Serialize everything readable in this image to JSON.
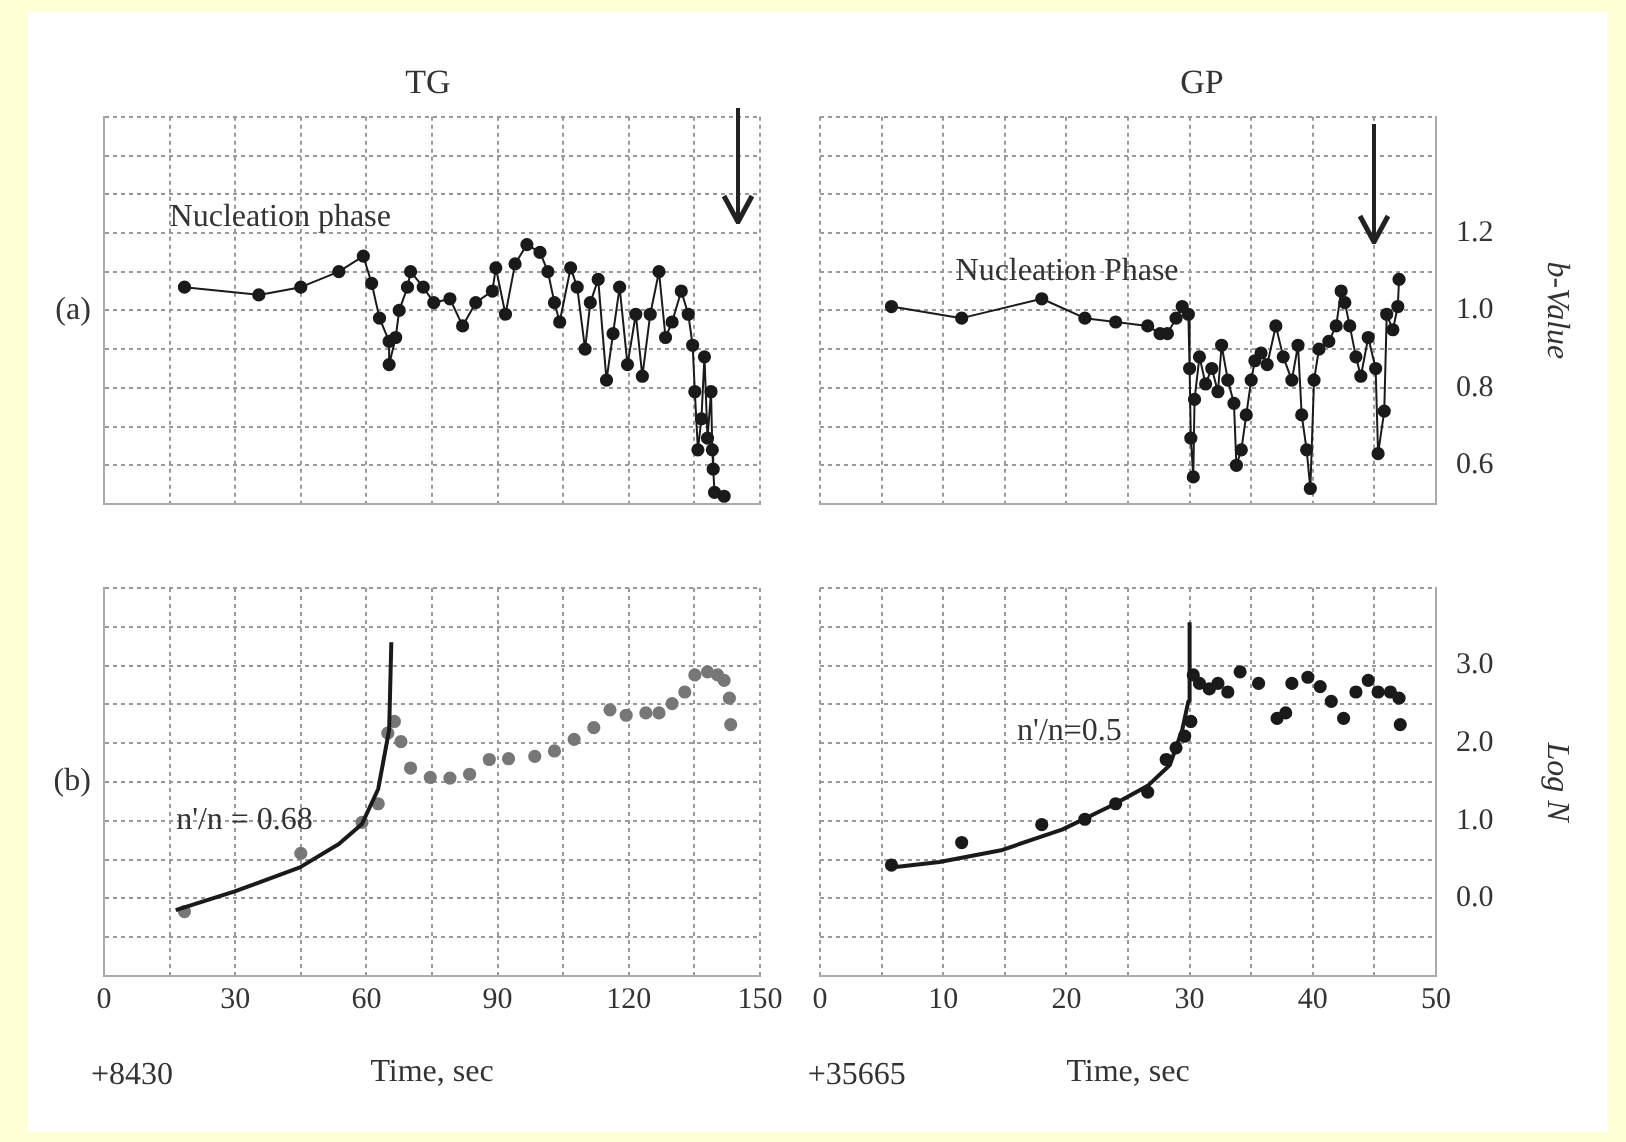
{
  "chart_data": [
    {
      "type": "line",
      "title": "TG",
      "xlim": [
        0,
        150
      ],
      "xticks": [
        0,
        {
          "value": 15,
          "label": null
        },
        30,
        {
          "value": 45,
          "label": null
        },
        60,
        {
          "value": 75,
          "label": null
        },
        90,
        {
          "value": 105,
          "label": null
        },
        120,
        {
          "value": 135,
          "label": null
        },
        150
      ],
      "ylim": [
        0.5,
        1.5
      ],
      "yticks": [
        {
          "value": 0.5,
          "label": null
        },
        0.6,
        {
          "value": 0.7,
          "label": null
        },
        0.8,
        {
          "value": 0.9,
          "label": null
        },
        1,
        {
          "value": 1.1,
          "label": null
        },
        1.2,
        {
          "value": 1.3,
          "label": null
        },
        {
          "value": 1.4,
          "label": null
        },
        {
          "value": 1.5,
          "label": null
        }
      ],
      "grid": true,
      "legend": false,
      "tick_labels": false,
      "annotations": [
        "(a)",
        "Nucleation phase"
      ],
      "series": [
        {
          "type": "line",
          "marker": "circle",
          "color": "#1a1a1a",
          "x": [
            18.4,
            35.4,
            45,
            53.7,
            59.3,
            61.2,
            63,
            65.2,
            65.2,
            66.7,
            67.5,
            69.4,
            70.1,
            73,
            75.4,
            79.1,
            82,
            85,
            88.8,
            89.6,
            91.8,
            94,
            96.7,
            99.7,
            101.5,
            103,
            104.2,
            106.7,
            108.2,
            110,
            111.2,
            113,
            114.9,
            116.4,
            117.9,
            119.7,
            121.6,
            123.1,
            124.9,
            126.9,
            128.4,
            129.9,
            132,
            133.6,
            134.6,
            135.1,
            135.8,
            136.6,
            137.3,
            138,
            138.8,
            139.1,
            139.3,
            139.6,
            141.8
          ],
          "values": [
            1.06,
            1.04,
            1.06,
            1.1,
            1.14,
            1.07,
            0.98,
            0.92,
            0.86,
            0.93,
            1.0,
            1.06,
            1.1,
            1.06,
            1.02,
            1.03,
            0.96,
            1.02,
            1.05,
            1.11,
            0.99,
            1.12,
            1.17,
            1.15,
            1.1,
            1.02,
            0.97,
            1.11,
            1.06,
            0.9,
            1.02,
            1.08,
            0.82,
            0.94,
            1.06,
            0.86,
            0.99,
            0.83,
            0.99,
            1.1,
            0.93,
            0.97,
            1.05,
            0.99,
            0.91,
            0.79,
            0.64,
            0.72,
            0.88,
            0.67,
            0.79,
            0.64,
            0.59,
            0.53,
            0.52
          ]
        }
      ]
    },
    {
      "type": "line",
      "title": "GP",
      "ylabel": "b-Value",
      "xlim": [
        0,
        50
      ],
      "xticks": [
        0,
        {
          "value": 5,
          "label": null
        },
        10,
        {
          "value": 15,
          "label": null
        },
        20,
        {
          "value": 25,
          "label": null
        },
        30,
        {
          "value": 35,
          "label": null
        },
        40,
        {
          "value": 45,
          "label": null
        },
        50
      ],
      "ylim": [
        0.5,
        1.5
      ],
      "yticks": [
        {
          "value": 0.5,
          "label": null
        },
        0.6,
        {
          "value": 0.7,
          "label": null
        },
        0.8,
        {
          "value": 0.9,
          "label": null
        },
        {
          "value": 1,
          "label": "1.0"
        },
        {
          "value": 1.1,
          "label": null
        },
        1.2,
        {
          "value": 1.3,
          "label": null
        },
        {
          "value": 1.4,
          "label": null
        },
        {
          "value": 1.5,
          "label": null
        }
      ],
      "grid": true,
      "legend": false,
      "tick_labels": "y",
      "annotations": [
        "Nucleation Phase"
      ],
      "series": [
        {
          "type": "line",
          "marker": "circle",
          "color": "#1a1a1a",
          "x": [
            5.8,
            11.5,
            18,
            21.5,
            24,
            26.6,
            27.6,
            28.2,
            28.9,
            29.4,
            29.9,
            30,
            30.1,
            30.3,
            30.4,
            30.8,
            31.3,
            31.8,
            32.3,
            32.6,
            33.1,
            33.6,
            33.8,
            34.2,
            34.6,
            35,
            35.3,
            35.8,
            36.3,
            37,
            37.6,
            38.3,
            38.8,
            39.1,
            39.5,
            39.8,
            40.1,
            40.5,
            41.3,
            41.9,
            42.3,
            42.6,
            43,
            43.5,
            43.9,
            44.5,
            45.1,
            45.3,
            45.8,
            46,
            46.5,
            46.9,
            47
          ],
          "values": [
            1.01,
            0.98,
            1.03,
            0.98,
            0.97,
            0.96,
            0.94,
            0.94,
            0.98,
            1.01,
            0.99,
            0.85,
            0.67,
            0.57,
            0.77,
            0.88,
            0.81,
            0.85,
            0.79,
            0.91,
            0.82,
            0.76,
            0.6,
            0.64,
            0.73,
            0.82,
            0.87,
            0.89,
            0.86,
            0.96,
            0.88,
            0.82,
            0.91,
            0.73,
            0.64,
            0.54,
            0.82,
            0.9,
            0.92,
            0.96,
            1.05,
            1.02,
            0.96,
            0.88,
            0.83,
            0.93,
            0.85,
            0.63,
            0.74,
            0.99,
            0.95,
            1.01,
            1.08
          ]
        }
      ]
    },
    {
      "type": "line",
      "xlabel": "Time, sec",
      "xlim": [
        0,
        150
      ],
      "xticks": [
        0,
        {
          "value": 15,
          "label": null
        },
        30,
        {
          "value": 45,
          "label": null
        },
        60,
        {
          "value": 75,
          "label": null
        },
        90,
        {
          "value": 105,
          "label": null
        },
        120,
        {
          "value": 135,
          "label": null
        },
        150
      ],
      "ylim": [
        -1,
        4
      ],
      "yticks": [
        {
          "value": -1,
          "label": null
        },
        {
          "value": -0.5,
          "label": null
        },
        0,
        {
          "value": 0.5,
          "label": null
        },
        1,
        {
          "value": 1.5,
          "label": null
        },
        2,
        {
          "value": 2.5,
          "label": null
        },
        3,
        {
          "value": 3.5,
          "label": null
        },
        {
          "value": 4,
          "label": null
        }
      ],
      "grid": true,
      "legend": false,
      "tick_labels": "x",
      "annotations": [
        "(b)",
        "n'/n = 0.68",
        "+8430"
      ],
      "series": [
        {
          "type": "line",
          "marker": "none",
          "color": "#1a1a1a",
          "x": [
            16.4,
            29.9,
            44.8,
            53.7,
            59,
            62.7,
            65.2,
            65.7
          ],
          "values": [
            -0.15,
            0.09,
            0.4,
            0.7,
            0.96,
            1.41,
            2.17,
            3.3
          ]
        },
        {
          "type": "scatter",
          "marker": "circle",
          "color": "#777777",
          "x": [
            18.4,
            45,
            59,
            62.7,
            64.9,
            66.4,
            67.9,
            70.1,
            74.6,
            79.1,
            83.6,
            88.1,
            92.5,
            98.5,
            103,
            107.5,
            112,
            115.7,
            119.4,
            123.9,
            126.9,
            129.9,
            132.8,
            135.1,
            138,
            140.3,
            141.8,
            143,
            143.3
          ],
          "values": [
            -0.17,
            0.58,
            0.98,
            1.22,
            2.13,
            2.28,
            2.02,
            1.68,
            1.56,
            1.55,
            1.6,
            1.79,
            1.8,
            1.83,
            1.9,
            2.05,
            2.2,
            2.43,
            2.36,
            2.39,
            2.39,
            2.51,
            2.66,
            2.88,
            2.92,
            2.88,
            2.81,
            2.58,
            2.24
          ]
        }
      ]
    },
    {
      "type": "line",
      "xlabel": "Time, sec",
      "ylabel": "Log N",
      "xlim": [
        0,
        50
      ],
      "xticks": [
        0,
        {
          "value": 5,
          "label": null
        },
        10,
        {
          "value": 15,
          "label": null
        },
        20,
        {
          "value": 25,
          "label": null
        },
        30,
        {
          "value": 35,
          "label": null
        },
        40,
        {
          "value": 45,
          "label": null
        },
        50
      ],
      "ylim": [
        -1,
        4
      ],
      "yticks": [
        {
          "value": -1,
          "label": null
        },
        {
          "value": -0.5,
          "label": null
        },
        {
          "value": 0,
          "label": "0.0"
        },
        {
          "value": 0.5,
          "label": null
        },
        {
          "value": 1,
          "label": "1.0"
        },
        {
          "value": 1.5,
          "label": null
        },
        {
          "value": 2,
          "label": "2.0"
        },
        {
          "value": 2.5,
          "label": null
        },
        {
          "value": 3,
          "label": "3.0"
        },
        {
          "value": 3.5,
          "label": null
        },
        {
          "value": 4,
          "label": null
        }
      ],
      "grid": true,
      "legend": false,
      "annotations": [
        "n'/n=0.5",
        "+35665"
      ],
      "series": [
        {
          "type": "line",
          "marker": "none",
          "color": "#1a1a1a",
          "x": [
            5.97,
            9.7,
            14.7,
            19.7,
            23.6,
            26.6,
            28.4,
            29.4,
            29.9,
            30
          ],
          "values": [
            0.4,
            0.47,
            0.62,
            0.89,
            1.19,
            1.45,
            1.72,
            2.17,
            2.54,
            3.56
          ]
        },
        {
          "type": "scatter",
          "marker": "circle",
          "color": "#1a1a1a",
          "x": [
            5.8,
            11.5,
            18,
            21.5,
            24,
            26.6,
            28.1,
            28.9,
            29.6,
            30.1,
            30.3,
            30.8,
            31.6,
            32.3,
            33.1,
            34.1,
            35.6,
            37.1,
            37.8,
            38.3,
            39.6,
            40.6,
            41.5,
            42.5,
            43.5,
            44.5,
            45.3,
            46.3,
            47,
            47.1
          ],
          "values": [
            0.43,
            0.72,
            0.95,
            1.02,
            1.22,
            1.37,
            1.79,
            1.94,
            2.09,
            2.28,
            2.88,
            2.77,
            2.7,
            2.77,
            2.66,
            2.92,
            2.77,
            2.32,
            2.39,
            2.77,
            2.85,
            2.73,
            2.54,
            2.32,
            2.66,
            2.81,
            2.66,
            2.66,
            2.58,
            2.24
          ]
        }
      ]
    }
  ]
}
